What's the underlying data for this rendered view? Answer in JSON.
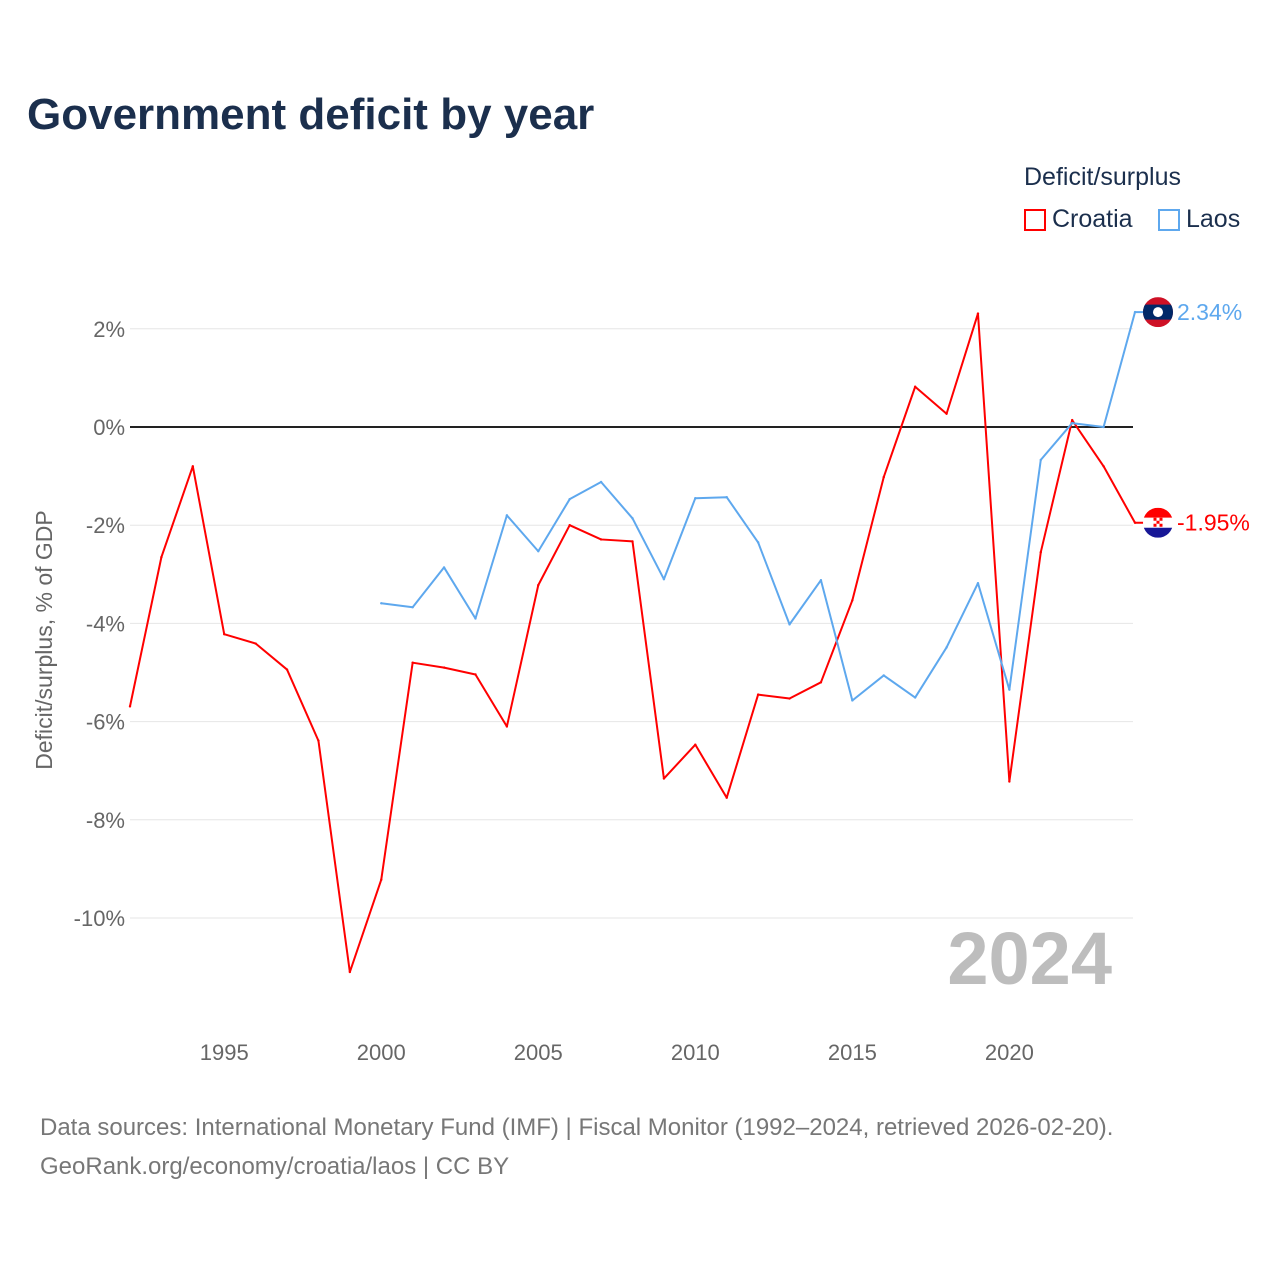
{
  "title": "Government deficit by year",
  "legend": {
    "title": "Deficit/surplus",
    "items": [
      {
        "name": "Croatia",
        "color": "#ff0000"
      },
      {
        "name": "Laos",
        "color": "#5ea8ee"
      }
    ]
  },
  "footer": {
    "line1": "Data sources: International Monetary Fund (IMF) | Fiscal Monitor (1992–2024, retrieved 2026-02-20).",
    "line2": "GeoRank.org/economy/croatia/laos | CC BY"
  },
  "chart_data": {
    "type": "line",
    "title": "Government deficit by year",
    "xlabel": "",
    "ylabel": "Deficit/surplus, % of GDP",
    "xlim": [
      1992,
      2024
    ],
    "ylim": [
      -11.8,
      2.9
    ],
    "yticks": [
      2,
      0,
      -2,
      -4,
      -6,
      -8,
      -10
    ],
    "ytick_labels": [
      "2%",
      "0%",
      "-2%",
      "-4%",
      "-6%",
      "-8%",
      "-10%"
    ],
    "xticks": [
      1995,
      2000,
      2005,
      2010,
      2015,
      2020
    ],
    "xtick_labels": [
      "1995",
      "2000",
      "2005",
      "2010",
      "2015",
      "2020"
    ],
    "year_watermark": "2024",
    "series": [
      {
        "name": "Croatia",
        "color": "#ff0000",
        "end_label": "-1.95%",
        "x": [
          1992,
          1993,
          1994,
          1995,
          1996,
          1997,
          1998,
          1999,
          2000,
          2001,
          2002,
          2003,
          2004,
          2005,
          2006,
          2007,
          2008,
          2009,
          2010,
          2011,
          2012,
          2013,
          2014,
          2015,
          2016,
          2017,
          2018,
          2019,
          2020,
          2021,
          2022,
          2023,
          2024
        ],
        "values": [
          -5.69,
          -2.65,
          -0.8,
          -4.22,
          -4.41,
          -4.94,
          -6.39,
          -11.1,
          -9.22,
          -4.8,
          -4.9,
          -5.04,
          -6.1,
          -3.22,
          -2.0,
          -2.29,
          -2.33,
          -7.16,
          -6.47,
          -7.55,
          -5.45,
          -5.53,
          -5.2,
          -3.53,
          -1.02,
          0.82,
          0.27,
          2.31,
          -7.22,
          -2.55,
          0.14,
          -0.8,
          -1.95
        ]
      },
      {
        "name": "Laos",
        "color": "#5ea8ee",
        "end_label": "2.34%",
        "x": [
          2000,
          2001,
          2002,
          2003,
          2004,
          2005,
          2006,
          2007,
          2008,
          2009,
          2010,
          2011,
          2012,
          2013,
          2014,
          2015,
          2016,
          2017,
          2018,
          2019,
          2020,
          2021,
          2022,
          2023,
          2024
        ],
        "values": [
          -3.59,
          -3.67,
          -2.86,
          -3.9,
          -1.8,
          -2.53,
          -1.47,
          -1.12,
          -1.86,
          -3.1,
          -1.45,
          -1.43,
          -2.35,
          -4.02,
          -3.12,
          -5.57,
          -5.06,
          -5.51,
          -4.49,
          -3.18,
          -5.35,
          -0.67,
          0.08,
          0.0,
          2.34
        ]
      }
    ]
  }
}
